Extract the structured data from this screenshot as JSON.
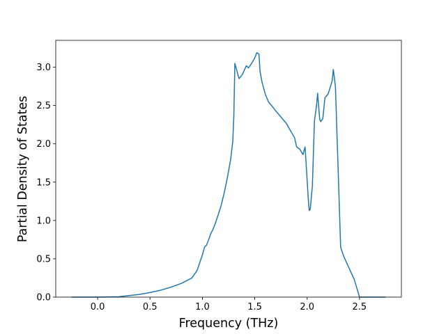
{
  "chart_data": {
    "type": "line",
    "x_label": "Frequency (THz)",
    "y_label": "Partial Density of States",
    "color": "#1f77b4",
    "x": [
      -0.25,
      0,
      0.2,
      0.3,
      0.4,
      0.5,
      0.6,
      0.7,
      0.8,
      0.9,
      0.95,
      1.0,
      1.02,
      1.04,
      1.06,
      1.08,
      1.1,
      1.12,
      1.15,
      1.18,
      1.21,
      1.24,
      1.27,
      1.29,
      1.3,
      1.31,
      1.32,
      1.35,
      1.38,
      1.4,
      1.42,
      1.44,
      1.47,
      1.5,
      1.52,
      1.54,
      1.55,
      1.57,
      1.6,
      1.63,
      1.66,
      1.7,
      1.75,
      1.8,
      1.85,
      1.88,
      1.9,
      1.93,
      1.96,
      1.98,
      1.99,
      2.01,
      2.02,
      2.03,
      2.05,
      2.07,
      2.09,
      2.1,
      2.12,
      2.13,
      2.15,
      2.17,
      2.2,
      2.23,
      2.24,
      2.25,
      2.27,
      2.3,
      2.32,
      2.35,
      2.4,
      2.45,
      2.5,
      2.52,
      2.75
    ],
    "values": [
      0,
      0,
      0.005,
      0.02,
      0.035,
      0.06,
      0.09,
      0.13,
      0.18,
      0.25,
      0.35,
      0.55,
      0.65,
      0.68,
      0.75,
      0.83,
      0.88,
      0.95,
      1.07,
      1.2,
      1.37,
      1.57,
      1.8,
      2.03,
      2.35,
      3.05,
      3.0,
      2.85,
      2.9,
      2.96,
      3.02,
      2.99,
      3.05,
      3.12,
      3.19,
      3.17,
      2.95,
      2.8,
      2.65,
      2.55,
      2.5,
      2.43,
      2.35,
      2.27,
      2.15,
      2.08,
      1.96,
      1.93,
      1.86,
      1.96,
      1.75,
      1.3,
      1.13,
      1.15,
      1.45,
      2.3,
      2.5,
      2.66,
      2.32,
      2.29,
      2.33,
      2.6,
      2.65,
      2.78,
      2.83,
      2.97,
      2.75,
      1.5,
      0.65,
      0.53,
      0.38,
      0.23,
      0.0,
      0,
      0
    ],
    "xlim": [
      -0.4,
      2.9
    ],
    "ylim": [
      0,
      3.35
    ],
    "xticks": [
      {
        "value": 0,
        "label": "0.0"
      },
      0.5,
      {
        "value": 1,
        "label": "1.0"
      },
      1.5,
      {
        "value": 2,
        "label": "2.0"
      },
      2.5
    ],
    "yticks": [
      {
        "value": 0,
        "label": "0.0"
      },
      0.5,
      {
        "value": 1,
        "label": "1.0"
      },
      1.5,
      {
        "value": 2,
        "label": "2.0"
      },
      2.5,
      {
        "value": 3,
        "label": "3.0"
      }
    ]
  }
}
